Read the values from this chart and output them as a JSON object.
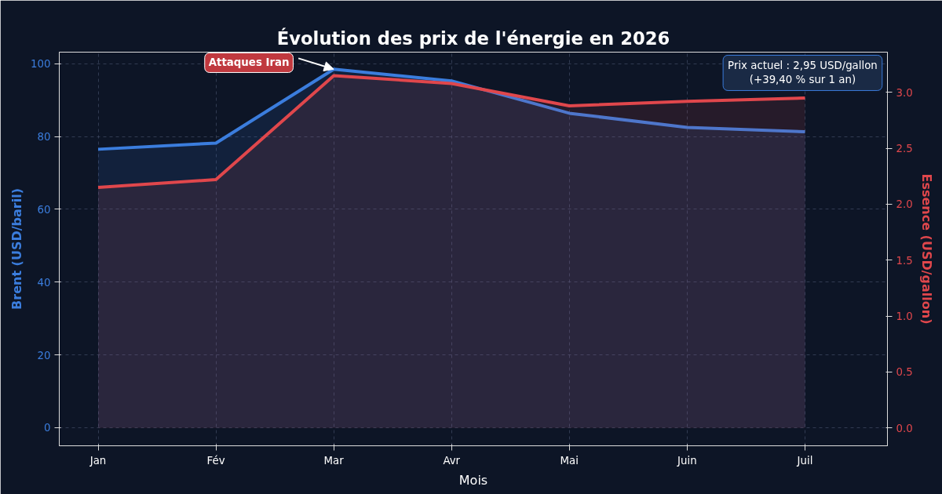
{
  "chart_data": {
    "type": "area",
    "title": "Évolution des prix de l'énergie en 2026",
    "xlabel": "Mois",
    "ylabel": "Brent (USD/baril)",
    "y2label": "Essence (USD/gallon)",
    "categories": [
      "Jan",
      "Fév",
      "Mar",
      "Avr",
      "Mai",
      "Juin",
      "Juil"
    ],
    "series": [
      {
        "color": "#3b7ddd",
        "values": [
          76.5,
          78.2,
          98.5,
          95.3,
          86.4,
          82.5,
          81.3
        ]
      },
      {
        "color": "#e0474c",
        "axis": "y2",
        "values": [
          2.15,
          2.22,
          3.15,
          3.08,
          2.88,
          2.92,
          2.95
        ]
      }
    ],
    "ylim": [
      -5,
      103.2
    ],
    "yticks": [
      0,
      20,
      40,
      60,
      80,
      100
    ],
    "y2lim": [
      -0.16,
      3.36
    ],
    "y2ticks": [
      {
        "value": 0,
        "label": "0.0"
      },
      {
        "value": 0.5,
        "label": "0.5"
      },
      {
        "value": 1,
        "label": "1.0"
      },
      {
        "value": 1.5,
        "label": "1.5"
      },
      {
        "value": 2,
        "label": "2.0"
      },
      {
        "value": 2.5,
        "label": "2.5"
      },
      {
        "value": 3,
        "label": "3.0"
      }
    ],
    "grid": true,
    "annotations": [
      {
        "text": "Attaques Iran",
        "x": "Mar",
        "y": 98.5
      },
      "Prix actuel : 2,95 USD/gallon\n(+39,40 % sur 1 an)"
    ]
  }
}
